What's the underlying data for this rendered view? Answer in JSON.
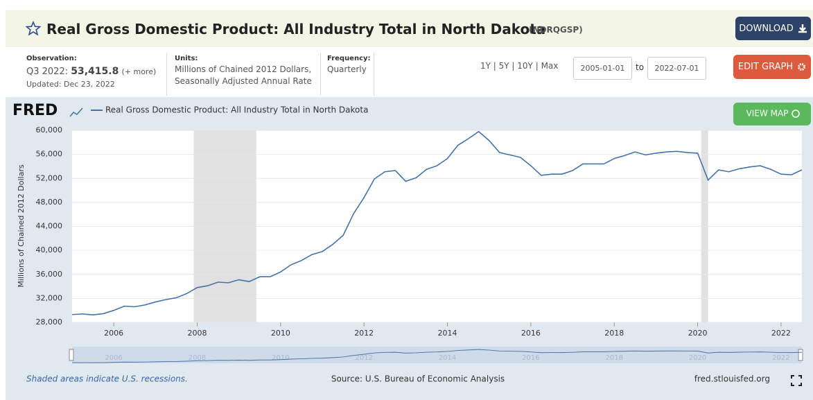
{
  "header": {
    "title": "Real Gross Domestic Product: All Industry Total in North Dakota",
    "series_id": "(NDRQGSP)",
    "download": "DOWNLOAD"
  },
  "info": {
    "observation_label": "Observation:",
    "observation_period": "Q3 2022:",
    "observation_value": "53,415.8",
    "more": "(+ more)",
    "updated": "Updated: Dec 23, 2022",
    "units_label": "Units:",
    "units_line1": "Millions of Chained 2012 Dollars,",
    "units_line2": "Seasonally Adjusted Annual Rate",
    "frequency_label": "Frequency:",
    "frequency": "Quarterly"
  },
  "controls": {
    "ranges": [
      "1Y",
      "5Y",
      "10Y",
      "Max"
    ],
    "date_from": "2005-01-01",
    "to": "to",
    "date_to": "2022-07-01",
    "edit_graph": "EDIT GRAPH",
    "view_map": "VIEW MAP"
  },
  "logo": "FRED",
  "footer": {
    "recession_note": "Shaded areas indicate U.S. recessions.",
    "source": "Source: U.S. Bureau of Economic Analysis",
    "site": "fred.stlouisfed.org"
  },
  "chart_data": {
    "type": "line",
    "y_label": "Millions of Chained 2012 Dollars",
    "series": [
      {
        "name": "Real Gross Domestic Product: All Industry Total in North Dakota",
        "color": "#4572a7",
        "values": [
          29300,
          29400,
          29250,
          29450,
          30000,
          30700,
          30600,
          30900,
          31400,
          31800,
          32100,
          32800,
          33800,
          34100,
          34700,
          34600,
          35100,
          34800,
          35600,
          35600,
          36400,
          37600,
          38300,
          39300,
          39800,
          41000,
          42500,
          46100,
          48800,
          51900,
          53100,
          53300,
          51500,
          52100,
          53500,
          54100,
          55300,
          57500,
          58600,
          59800,
          58300,
          56300,
          55900,
          55500,
          54100,
          52500,
          52700,
          52700,
          53300,
          54400,
          54400,
          54400,
          55300,
          55800,
          56400,
          55900,
          56200,
          56400,
          56500,
          56300,
          56200,
          51700,
          53400,
          53100,
          53600,
          53900,
          54100,
          53500,
          52700,
          52600,
          53415.8
        ]
      }
    ],
    "x": [
      2005,
      2005.25,
      2005.5,
      2005.75,
      2006,
      2006.25,
      2006.5,
      2006.75,
      2007,
      2007.25,
      2007.5,
      2007.75,
      2008,
      2008.25,
      2008.5,
      2008.75,
      2009,
      2009.25,
      2009.5,
      2009.75,
      2010,
      2010.25,
      2010.5,
      2010.75,
      2011,
      2011.25,
      2011.5,
      2011.75,
      2012,
      2012.25,
      2012.5,
      2012.75,
      2013,
      2013.25,
      2013.5,
      2013.75,
      2014,
      2014.25,
      2014.5,
      2014.75,
      2015,
      2015.25,
      2015.5,
      2015.75,
      2016,
      2016.25,
      2016.5,
      2016.75,
      2017,
      2017.25,
      2017.5,
      2017.75,
      2018,
      2018.25,
      2018.5,
      2018.75,
      2019,
      2019.25,
      2019.5,
      2019.75,
      2020,
      2020.25,
      2020.5,
      2020.75,
      2021,
      2021.25,
      2021.5,
      2021.75,
      2022,
      2022.25,
      2022.5
    ],
    "xlim": [
      2005,
      2022.5
    ],
    "xticks": [
      2006,
      2008,
      2010,
      2012,
      2014,
      2016,
      2018,
      2020,
      2022
    ],
    "ylim": [
      28000,
      60000
    ],
    "yticks": [
      {
        "value": 28000,
        "label": "28,000"
      },
      {
        "value": 32000,
        "label": "32,000"
      },
      {
        "value": 36000,
        "label": "36,000"
      },
      {
        "value": 40000,
        "label": "40,000"
      },
      {
        "value": 44000,
        "label": "44,000"
      },
      {
        "value": 48000,
        "label": "48,000"
      },
      {
        "value": 52000,
        "label": "52,000"
      },
      {
        "value": 56000,
        "label": "56,000"
      },
      {
        "value": 60000,
        "label": "60,000"
      }
    ],
    "grid": true,
    "recessions": [
      [
        2007.917,
        2009.417
      ],
      [
        2020.083,
        2020.25
      ]
    ],
    "recession_color": "#e1e1e1"
  }
}
